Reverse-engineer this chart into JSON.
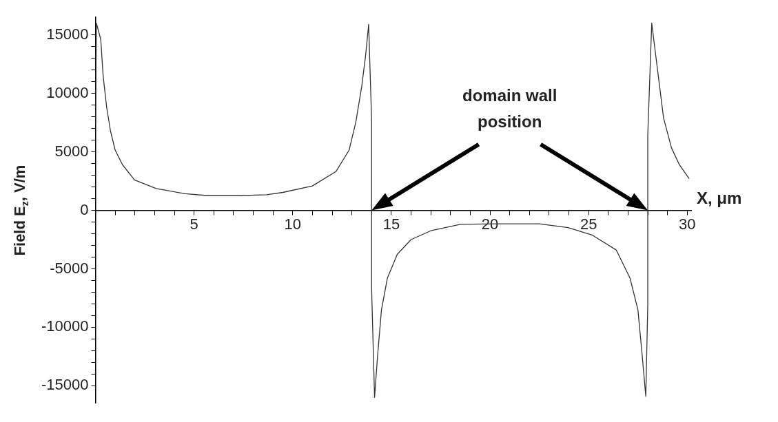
{
  "chart_data": {
    "type": "line",
    "xlabel": "X, μm",
    "ylabel": "Field E$_{z}$, V/m",
    "xlim": [
      0,
      30.2
    ],
    "ylim": [
      -16500,
      16500
    ],
    "xticks": [
      {
        "value": 1,
        "label": null
      },
      {
        "value": 2,
        "label": null
      },
      {
        "value": 3,
        "label": null
      },
      {
        "value": 4,
        "label": null
      },
      5,
      {
        "value": 6,
        "label": null
      },
      {
        "value": 7,
        "label": null
      },
      {
        "value": 8,
        "label": null
      },
      {
        "value": 9,
        "label": null
      },
      10,
      {
        "value": 11,
        "label": null
      },
      {
        "value": 12,
        "label": null
      },
      {
        "value": 13,
        "label": null
      },
      {
        "value": 14,
        "label": null
      },
      15,
      {
        "value": 16,
        "label": null
      },
      {
        "value": 17,
        "label": null
      },
      {
        "value": 18,
        "label": null
      },
      {
        "value": 19,
        "label": null
      },
      20,
      {
        "value": 21,
        "label": null
      },
      {
        "value": 22,
        "label": null
      },
      {
        "value": 23,
        "label": null
      },
      {
        "value": 24,
        "label": null
      },
      25,
      {
        "value": 26,
        "label": null
      },
      {
        "value": 27,
        "label": null
      },
      {
        "value": 28,
        "label": null
      },
      {
        "value": 29,
        "label": null
      },
      30
    ],
    "yticks": [
      -15000,
      {
        "value": -14000,
        "label": null
      },
      {
        "value": -13000,
        "label": null
      },
      {
        "value": -12000,
        "label": null
      },
      {
        "value": -11000,
        "label": null
      },
      -10000,
      {
        "value": -9000,
        "label": null
      },
      {
        "value": -8000,
        "label": null
      },
      {
        "value": -7000,
        "label": null
      },
      {
        "value": -6000,
        "label": null
      },
      -5000,
      {
        "value": -4000,
        "label": null
      },
      {
        "value": -3000,
        "label": null
      },
      {
        "value": -2000,
        "label": null
      },
      {
        "value": -1000,
        "label": null
      },
      0,
      {
        "value": 1000,
        "label": null
      },
      {
        "value": 2000,
        "label": null
      },
      {
        "value": 3000,
        "label": null
      },
      {
        "value": 4000,
        "label": null
      },
      5000,
      {
        "value": 6000,
        "label": null
      },
      {
        "value": 7000,
        "label": null
      },
      {
        "value": 8000,
        "label": null
      },
      {
        "value": 9000,
        "label": null
      },
      10000,
      {
        "value": 11000,
        "label": null
      },
      {
        "value": 12000,
        "label": null
      },
      {
        "value": 13000,
        "label": null
      },
      {
        "value": 14000,
        "label": null
      },
      15000
    ],
    "series": [
      {
        "color": "#333333",
        "x": [
          0,
          0.05,
          0.27,
          0.39,
          0.57,
          0.76,
          1.0,
          1.37,
          1.98,
          3.08,
          4.54,
          5.75,
          7.2,
          8.68,
          9.5,
          11.0,
          12.2,
          12.86,
          13.2,
          13.5,
          13.7,
          13.85,
          14.0,
          14.0,
          14.15,
          14.3,
          14.5,
          14.8,
          15.3,
          16.0,
          17.0,
          18.5,
          20.3,
          22.5,
          23.96,
          25.2,
          26.4,
          27.1,
          27.5,
          27.7,
          27.9,
          28.0,
          28.0,
          28.2,
          28.4,
          28.6,
          28.8,
          29.2,
          29.6,
          30.1
        ],
        "values": [
          7300,
          16000,
          14600,
          11500,
          8800,
          6800,
          5150,
          3900,
          2600,
          1860,
          1420,
          1250,
          1250,
          1330,
          1530,
          2080,
          3330,
          5150,
          7540,
          10600,
          13300,
          15900,
          7700,
          -6700,
          -16000,
          -12500,
          -8500,
          -5800,
          -3770,
          -2500,
          -1750,
          -1200,
          -1150,
          -1150,
          -1480,
          -2130,
          -3390,
          -5800,
          -8500,
          -12100,
          -15900,
          -8100,
          6450,
          16000,
          13300,
          10600,
          7900,
          5350,
          3900,
          2700
        ]
      }
    ],
    "annotations": [
      "domain wall position"
    ]
  }
}
